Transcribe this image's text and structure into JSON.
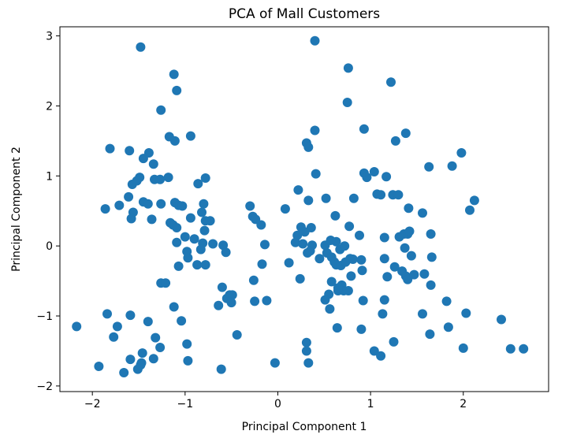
{
  "chart_data": {
    "type": "scatter",
    "title": "PCA of Mall Customers",
    "xlabel": "Principal Component 1",
    "ylabel": "Principal Component 2",
    "xlim": [
      -2.35,
      2.92
    ],
    "ylim": [
      -2.08,
      3.13
    ],
    "xticks": [
      -2,
      -1,
      0,
      1,
      2
    ],
    "yticks": [
      -2,
      -1,
      0,
      1,
      2,
      3
    ],
    "xtick_labels": [
      "−2",
      "−1",
      "0",
      "1",
      "2"
    ],
    "ytick_labels": [
      "−2",
      "−1",
      "0",
      "1",
      "2",
      "3"
    ],
    "grid": false,
    "legend": false,
    "marker_color": "#1f77b4",
    "points": [
      [
        -1.48,
        2.84
      ],
      [
        -1.12,
        2.45
      ],
      [
        -1.09,
        2.22
      ],
      [
        -1.26,
        1.94
      ],
      [
        -1.17,
        1.56
      ],
      [
        -1.11,
        1.5
      ],
      [
        -0.94,
        1.57
      ],
      [
        -1.81,
        1.39
      ],
      [
        -1.6,
        1.36
      ],
      [
        -1.39,
        1.33
      ],
      [
        -1.45,
        1.25
      ],
      [
        -1.34,
        1.17
      ],
      [
        -1.18,
        0.98
      ],
      [
        -1.49,
        0.98
      ],
      [
        -1.33,
        0.95
      ],
      [
        -1.27,
        0.95
      ],
      [
        -1.52,
        0.93
      ],
      [
        -1.57,
        0.88
      ],
      [
        -1.61,
        0.7
      ],
      [
        -1.71,
        0.58
      ],
      [
        -1.86,
        0.53
      ],
      [
        -1.45,
        0.63
      ],
      [
        -1.4,
        0.6
      ],
      [
        -1.26,
        0.6
      ],
      [
        -1.56,
        0.48
      ],
      [
        -1.58,
        0.39
      ],
      [
        -1.36,
        0.38
      ],
      [
        -1.11,
        0.62
      ],
      [
        -1.07,
        0.58
      ],
      [
        -1.03,
        0.57
      ],
      [
        -0.86,
        0.89
      ],
      [
        -0.78,
        0.97
      ],
      [
        -0.8,
        0.6
      ],
      [
        -0.82,
        0.48
      ],
      [
        -1.16,
        0.33
      ],
      [
        -1.13,
        0.3
      ],
      [
        -1.09,
        0.26
      ],
      [
        -0.94,
        0.4
      ],
      [
        -0.73,
        0.36
      ],
      [
        -0.78,
        0.36
      ],
      [
        -0.79,
        0.22
      ],
      [
        -1.0,
        0.13
      ],
      [
        -0.9,
        0.1
      ],
      [
        -1.09,
        0.05
      ],
      [
        -0.81,
        0.04
      ],
      [
        -0.7,
        0.03
      ],
      [
        -0.59,
        0.01
      ],
      [
        -0.83,
        -0.05
      ],
      [
        -0.97,
        -0.17
      ],
      [
        -0.98,
        -0.08
      ],
      [
        -0.56,
        -0.09
      ],
      [
        -0.87,
        -0.27
      ],
      [
        -0.78,
        -0.27
      ],
      [
        -1.07,
        -0.29
      ],
      [
        -1.26,
        -0.53
      ],
      [
        -1.21,
        -0.53
      ],
      [
        -0.6,
        -0.59
      ],
      [
        -0.52,
        -0.7
      ],
      [
        -0.55,
        -0.75
      ],
      [
        -0.49,
        -0.7
      ],
      [
        -0.5,
        -0.81
      ],
      [
        -0.64,
        -0.85
      ],
      [
        -1.12,
        -0.87
      ],
      [
        -1.04,
        -1.07
      ],
      [
        -1.84,
        -0.97
      ],
      [
        -1.59,
        -0.99
      ],
      [
        -1.4,
        -1.08
      ],
      [
        -1.73,
        -1.15
      ],
      [
        -1.32,
        -1.31
      ],
      [
        -1.77,
        -1.3
      ],
      [
        -1.27,
        -1.45
      ],
      [
        -1.46,
        -1.53
      ],
      [
        -1.34,
        -1.61
      ],
      [
        -1.59,
        -1.62
      ],
      [
        -1.47,
        -1.67
      ],
      [
        -1.51,
        -1.76
      ],
      [
        -1.48,
        -1.7
      ],
      [
        -1.66,
        -1.81
      ],
      [
        -1.93,
        -1.72
      ],
      [
        -2.17,
        -1.15
      ],
      [
        -0.98,
        -1.4
      ],
      [
        -0.97,
        -1.64
      ],
      [
        -0.61,
        -1.76
      ],
      [
        -0.44,
        -1.27
      ],
      [
        -0.3,
        0.57
      ],
      [
        -0.27,
        0.42
      ],
      [
        -0.24,
        0.38
      ],
      [
        -0.18,
        0.3
      ],
      [
        -0.14,
        0.02
      ],
      [
        -0.17,
        -0.26
      ],
      [
        -0.26,
        -0.49
      ],
      [
        -0.25,
        -0.79
      ],
      [
        -0.12,
        -0.78
      ],
      [
        -0.03,
        -1.67
      ],
      [
        0.08,
        0.53
      ],
      [
        0.22,
        0.8
      ],
      [
        0.33,
        0.65
      ],
      [
        0.41,
        1.03
      ],
      [
        0.31,
        1.47
      ],
      [
        0.33,
        1.41
      ],
      [
        0.4,
        1.65
      ],
      [
        0.4,
        2.93
      ],
      [
        0.76,
        2.54
      ],
      [
        0.75,
        2.05
      ],
      [
        0.93,
        1.67
      ],
      [
        0.62,
        0.43
      ],
      [
        0.52,
        0.68
      ],
      [
        0.82,
        0.68
      ],
      [
        0.77,
        0.28
      ],
      [
        0.88,
        0.15
      ],
      [
        0.25,
        0.27
      ],
      [
        0.21,
        0.15
      ],
      [
        0.29,
        0.2
      ],
      [
        0.36,
        0.26
      ],
      [
        0.19,
        0.05
      ],
      [
        0.27,
        0.03
      ],
      [
        0.37,
        0.01
      ],
      [
        0.51,
        0.01
      ],
      [
        0.63,
        0.06
      ],
      [
        0.57,
        0.08
      ],
      [
        0.67,
        -0.05
      ],
      [
        0.72,
        0.0
      ],
      [
        0.12,
        -0.24
      ],
      [
        0.32,
        -0.1
      ],
      [
        0.35,
        -0.07
      ],
      [
        0.53,
        -0.1
      ],
      [
        0.45,
        -0.18
      ],
      [
        0.58,
        -0.16
      ],
      [
        0.61,
        -0.23
      ],
      [
        0.63,
        -0.27
      ],
      [
        0.68,
        -0.28
      ],
      [
        0.73,
        -0.23
      ],
      [
        0.78,
        -0.18
      ],
      [
        0.81,
        -0.19
      ],
      [
        0.9,
        -0.2
      ],
      [
        0.91,
        -0.35
      ],
      [
        0.79,
        -0.43
      ],
      [
        0.58,
        -0.51
      ],
      [
        0.69,
        -0.56
      ],
      [
        0.55,
        -0.69
      ],
      [
        0.65,
        -0.64
      ],
      [
        0.71,
        -0.64
      ],
      [
        0.76,
        -0.64
      ],
      [
        0.65,
        -0.6
      ],
      [
        0.51,
        -0.77
      ],
      [
        0.56,
        -0.9
      ],
      [
        0.92,
        -0.78
      ],
      [
        0.24,
        -0.47
      ],
      [
        0.9,
        -1.19
      ],
      [
        0.64,
        -1.17
      ],
      [
        0.31,
        -1.38
      ],
      [
        0.31,
        -1.5
      ],
      [
        0.33,
        -1.67
      ],
      [
        0.93,
        1.04
      ],
      [
        0.96,
        0.98
      ],
      [
        1.04,
        1.06
      ],
      [
        1.11,
        0.73
      ],
      [
        1.07,
        0.74
      ],
      [
        1.17,
        0.99
      ],
      [
        1.24,
        0.73
      ],
      [
        1.3,
        0.73
      ],
      [
        1.27,
        1.5
      ],
      [
        1.38,
        1.61
      ],
      [
        1.22,
        2.34
      ],
      [
        1.41,
        0.54
      ],
      [
        1.15,
        0.12
      ],
      [
        1.31,
        0.13
      ],
      [
        1.36,
        0.17
      ],
      [
        1.4,
        0.17
      ],
      [
        1.42,
        0.21
      ],
      [
        1.56,
        0.47
      ],
      [
        1.65,
        0.17
      ],
      [
        1.66,
        -0.16
      ],
      [
        1.37,
        -0.03
      ],
      [
        1.44,
        -0.14
      ],
      [
        1.15,
        -0.18
      ],
      [
        1.26,
        -0.3
      ],
      [
        1.34,
        -0.36
      ],
      [
        1.38,
        -0.43
      ],
      [
        1.4,
        -0.48
      ],
      [
        1.47,
        -0.41
      ],
      [
        1.58,
        -0.4
      ],
      [
        1.65,
        -0.56
      ],
      [
        1.18,
        -0.44
      ],
      [
        1.15,
        -0.77
      ],
      [
        1.13,
        -0.97
      ],
      [
        1.04,
        -1.5
      ],
      [
        1.11,
        -1.57
      ],
      [
        1.25,
        -1.37
      ],
      [
        1.56,
        -0.97
      ],
      [
        1.64,
        -1.26
      ],
      [
        1.82,
        -0.79
      ],
      [
        1.84,
        -1.16
      ],
      [
        2.0,
        -1.46
      ],
      [
        2.03,
        -0.96
      ],
      [
        1.63,
        1.13
      ],
      [
        1.88,
        1.14
      ],
      [
        1.98,
        1.33
      ],
      [
        2.07,
        0.51
      ],
      [
        2.12,
        0.65
      ],
      [
        2.41,
        -1.05
      ],
      [
        2.51,
        -1.47
      ],
      [
        2.65,
        -1.47
      ]
    ]
  }
}
